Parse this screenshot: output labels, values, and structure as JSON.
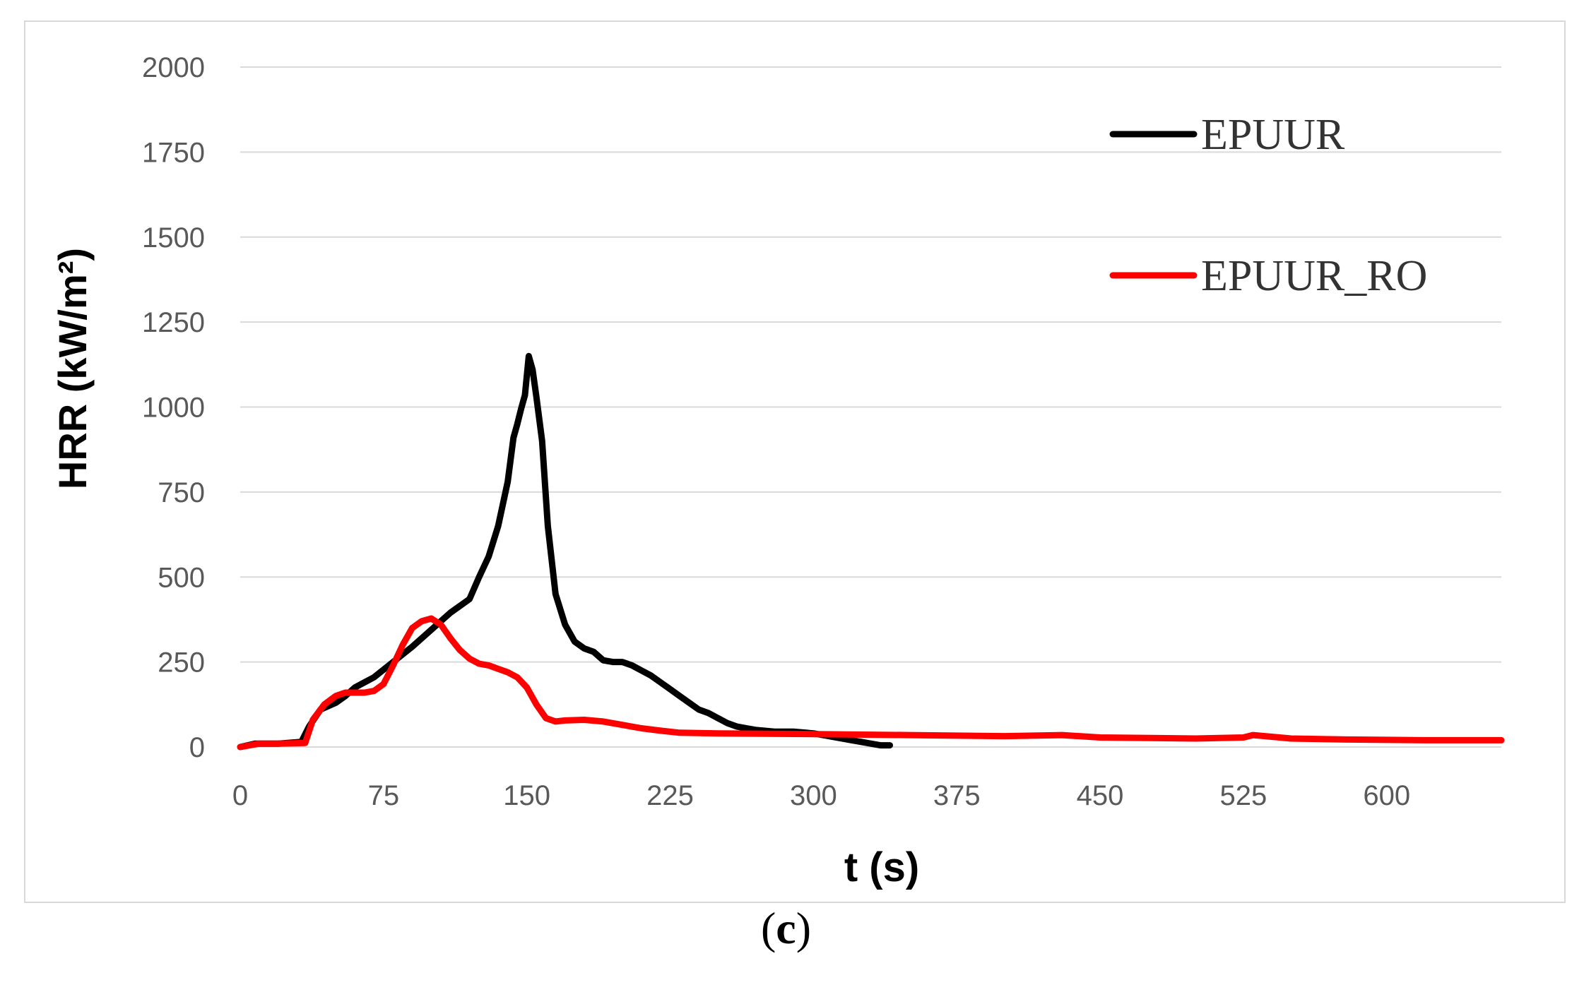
{
  "chart_data": {
    "type": "line",
    "xlabel": "t (s)",
    "ylabel": "HRR (kW/m²)",
    "xlim": [
      0,
      660
    ],
    "ylim": [
      0,
      2000
    ],
    "x_ticks": [
      "0",
      "75",
      "150",
      "225",
      "300",
      "375",
      "450",
      "525",
      "600"
    ],
    "y_ticks": [
      "0",
      "250",
      "500",
      "750",
      "1000",
      "1250",
      "1500",
      "1750",
      "2000"
    ],
    "grid": true,
    "legend_position": "top-right",
    "colors": {
      "EPUUR": "#000000",
      "EPUUR_RO": "#ff0000"
    },
    "series": [
      {
        "name": "EPUUR",
        "x": [
          0,
          8,
          20,
          32,
          36,
          42,
          50,
          55,
          60,
          65,
          70,
          80,
          90,
          100,
          110,
          115,
          120,
          125,
          130,
          135,
          140,
          143,
          145,
          147,
          149,
          151,
          153,
          155,
          158,
          161,
          165,
          170,
          175,
          180,
          185,
          190,
          195,
          200,
          205,
          210,
          215,
          220,
          225,
          230,
          235,
          240,
          245,
          250,
          255,
          260,
          265,
          270,
          280,
          290,
          300,
          310,
          320,
          330,
          335,
          340
        ],
        "y": [
          0,
          10,
          10,
          15,
          60,
          110,
          130,
          150,
          175,
          190,
          205,
          250,
          295,
          345,
          395,
          415,
          435,
          500,
          560,
          650,
          780,
          910,
          950,
          995,
          1035,
          1150,
          1110,
          1030,
          900,
          650,
          450,
          360,
          310,
          290,
          280,
          255,
          250,
          250,
          240,
          225,
          210,
          190,
          170,
          150,
          130,
          110,
          100,
          85,
          70,
          60,
          55,
          50,
          45,
          45,
          40,
          30,
          20,
          10,
          5,
          5
        ]
      },
      {
        "name": "EPUUR_RO",
        "x": [
          0,
          10,
          20,
          34,
          38,
          44,
          50,
          55,
          60,
          65,
          70,
          75,
          80,
          85,
          90,
          95,
          100,
          105,
          110,
          115,
          120,
          125,
          130,
          135,
          140,
          145,
          150,
          155,
          160,
          165,
          170,
          180,
          190,
          200,
          210,
          220,
          230,
          250,
          300,
          350,
          400,
          430,
          450,
          500,
          525,
          530,
          550,
          580,
          620,
          660
        ],
        "y": [
          0,
          10,
          10,
          12,
          80,
          125,
          150,
          160,
          160,
          160,
          165,
          185,
          240,
          300,
          350,
          370,
          378,
          360,
          320,
          285,
          260,
          245,
          240,
          230,
          220,
          205,
          175,
          125,
          85,
          75,
          78,
          80,
          75,
          65,
          55,
          48,
          42,
          40,
          38,
          35,
          32,
          35,
          28,
          25,
          28,
          35,
          25,
          22,
          20,
          20
        ]
      }
    ]
  },
  "caption": {
    "open": "(",
    "letter": "c",
    "close": ")"
  }
}
